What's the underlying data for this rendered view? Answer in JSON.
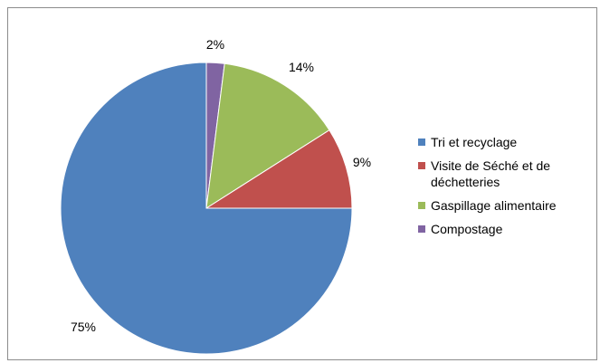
{
  "chart_data": {
    "type": "pie",
    "title": "",
    "series": [
      {
        "name": "Tri et recyclage",
        "value": 75,
        "label": "75%",
        "color": "#4F81BD"
      },
      {
        "name": "Visite de Séché et de déchetteries",
        "value": 9,
        "label": "9%",
        "color": "#C0504D"
      },
      {
        "name": "Gaspillage alimentaire",
        "value": 14,
        "label": "14%",
        "color": "#9BBB59"
      },
      {
        "name": "Compostage",
        "value": 2,
        "label": "2%",
        "color": "#8064A2"
      }
    ],
    "legend": {
      "placement": "right",
      "entries": [
        {
          "lines": [
            "Tri et recyclage"
          ],
          "color": "#4F81BD"
        },
        {
          "lines": [
            "Visite de Séché et de",
            "déchetteries"
          ],
          "color": "#C0504D"
        },
        {
          "lines": [
            "Gaspillage alimentaire"
          ],
          "color": "#9BBB59"
        },
        {
          "lines": [
            "Compostage"
          ],
          "color": "#8064A2"
        }
      ]
    }
  }
}
